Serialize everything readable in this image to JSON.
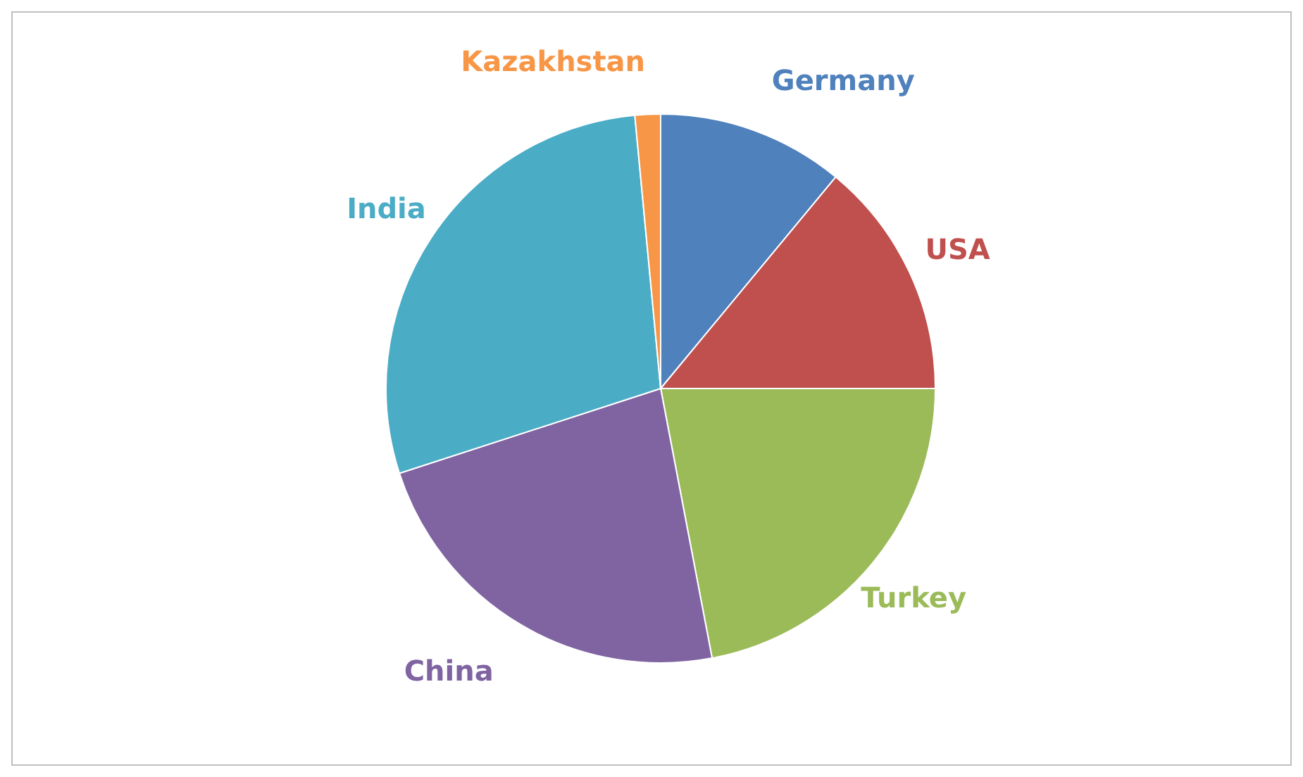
{
  "chart_data": {
    "type": "pie",
    "categories": [
      "Germany",
      "USA",
      "Turkey",
      "China",
      "India",
      "Kazakhstan"
    ],
    "values": [
      11,
      14,
      22,
      23,
      28.5,
      1.5
    ],
    "colors": [
      "#4f81bd",
      "#c0504d",
      "#9bbb59",
      "#8064a2",
      "#4bacc6",
      "#f79646"
    ],
    "legend": false
  }
}
